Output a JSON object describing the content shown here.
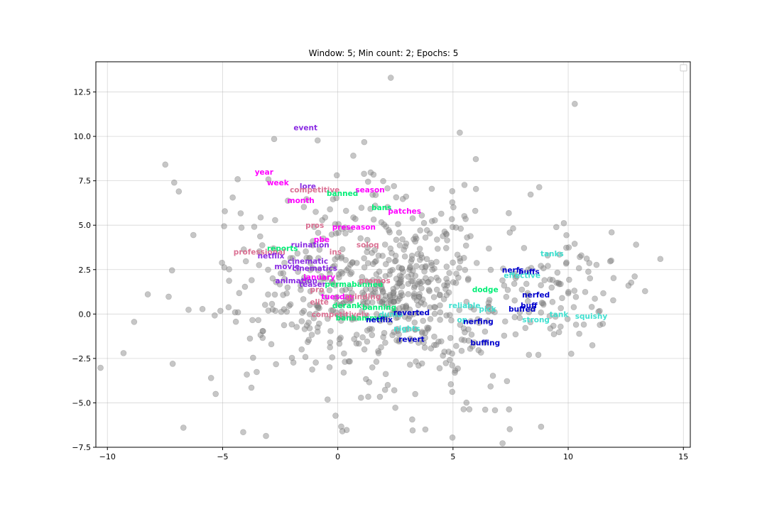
{
  "chart_data": {
    "type": "scatter",
    "title": "Window: 5;  Min count: 2;  Epochs: 5",
    "xlabel": "",
    "ylabel": "",
    "xlim": [
      -10.5,
      15.3
    ],
    "ylim": [
      -7.5,
      14.2
    ],
    "xticks": [
      -10,
      -5,
      0,
      5,
      10,
      15
    ],
    "xtick_labels": [
      "−10",
      "−5",
      "0",
      "5",
      "10",
      "15"
    ],
    "yticks": [
      -7.5,
      -5.0,
      -2.5,
      0.0,
      2.5,
      5.0,
      7.5,
      10.0,
      12.5
    ],
    "ytick_labels": [
      "−7.5",
      "−5.0",
      "−2.5",
      "0.0",
      "2.5",
      "5.0",
      "7.5",
      "10.0",
      "12.5"
    ],
    "grid": true,
    "legend": "top-right (empty)",
    "point_color": "#808080",
    "points_note": "gray background word vectors (approximate sample)",
    "background_points": [],
    "labels": [
      {
        "text": "event",
        "x": -1.4,
        "y": 10.5,
        "color": "#8a2be2"
      },
      {
        "text": "year",
        "x": -3.2,
        "y": 8.0,
        "color": "#ff00ff"
      },
      {
        "text": "week",
        "x": -2.6,
        "y": 7.4,
        "color": "#ff00ff"
      },
      {
        "text": "lore",
        "x": -1.3,
        "y": 7.2,
        "color": "#8a2be2"
      },
      {
        "text": "competitive",
        "x": -1.0,
        "y": 7.0,
        "color": "#db7093"
      },
      {
        "text": "banned",
        "x": 0.2,
        "y": 6.8,
        "color": "#00ee76"
      },
      {
        "text": "season",
        "x": 1.4,
        "y": 7.0,
        "color": "#ff00ff"
      },
      {
        "text": "month",
        "x": -1.6,
        "y": 6.4,
        "color": "#ff00ff"
      },
      {
        "text": "bans",
        "x": 1.9,
        "y": 6.0,
        "color": "#00ee76"
      },
      {
        "text": "patches",
        "x": 2.9,
        "y": 5.8,
        "color": "#ff00ff"
      },
      {
        "text": "pros",
        "x": -1.0,
        "y": 5.0,
        "color": "#db7093"
      },
      {
        "text": "preseason",
        "x": 0.7,
        "y": 4.9,
        "color": "#ff00ff"
      },
      {
        "text": "pbe",
        "x": -0.7,
        "y": 4.2,
        "color": "#ff00ff"
      },
      {
        "text": "ruination",
        "x": -1.2,
        "y": 3.9,
        "color": "#8a2be2"
      },
      {
        "text": "soloq",
        "x": 1.3,
        "y": 3.9,
        "color": "#db7093"
      },
      {
        "text": "reports",
        "x": -2.4,
        "y": 3.7,
        "color": "#00ee76"
      },
      {
        "text": "professional",
        "x": -3.4,
        "y": 3.5,
        "color": "#db7093"
      },
      {
        "text": "netflix",
        "x": -2.9,
        "y": 3.3,
        "color": "#8a2be2"
      },
      {
        "text": "ins",
        "x": -0.1,
        "y": 3.5,
        "color": "#db7093"
      },
      {
        "text": "cinematic",
        "x": -1.3,
        "y": 3.0,
        "color": "#8a2be2"
      },
      {
        "text": "movie",
        "x": -2.2,
        "y": 2.7,
        "color": "#8a2be2"
      },
      {
        "text": "cinematics",
        "x": -1.0,
        "y": 2.6,
        "color": "#8a2be2"
      },
      {
        "text": "january",
        "x": -0.8,
        "y": 2.1,
        "color": "#ff00ff"
      },
      {
        "text": "animation",
        "x": -1.8,
        "y": 1.9,
        "color": "#8a2be2"
      },
      {
        "text": "teaser",
        "x": -1.1,
        "y": 1.7,
        "color": "#8a2be2"
      },
      {
        "text": "permabanned",
        "x": 0.7,
        "y": 1.7,
        "color": "#00ee76"
      },
      {
        "text": "promos",
        "x": 1.6,
        "y": 1.9,
        "color": "#db7093"
      },
      {
        "text": "pro",
        "x": -0.9,
        "y": 1.4,
        "color": "#db7093"
      },
      {
        "text": "tuesday",
        "x": 0.0,
        "y": 1.0,
        "color": "#ff00ff"
      },
      {
        "text": "grinding",
        "x": 1.1,
        "y": 1.0,
        "color": "#db7093"
      },
      {
        "text": "elite",
        "x": -0.8,
        "y": 0.7,
        "color": "#db7093"
      },
      {
        "text": "derank",
        "x": 0.4,
        "y": 0.5,
        "color": "#00ee76"
      },
      {
        "text": "banning",
        "x": 1.8,
        "y": 0.4,
        "color": "#00ee76"
      },
      {
        "text": "competitively",
        "x": 0.1,
        "y": 0.0,
        "color": "#db7093"
      },
      {
        "text": "dumb",
        "x": 2.3,
        "y": 0.0,
        "color": "#40e0d0"
      },
      {
        "text": "reverted",
        "x": 3.2,
        "y": 0.1,
        "color": "#0000cd"
      },
      {
        "text": "banhammer",
        "x": 1.0,
        "y": -0.2,
        "color": "#00ee76"
      },
      {
        "text": "netflix",
        "x": 1.8,
        "y": -0.3,
        "color": "#0000cd"
      },
      {
        "text": "nights",
        "x": 3.0,
        "y": -0.8,
        "color": "#40e0d0"
      },
      {
        "text": "revert",
        "x": 3.2,
        "y": -1.4,
        "color": "#0000cd"
      },
      {
        "text": "reliable",
        "x": 5.5,
        "y": 0.5,
        "color": "#40e0d0"
      },
      {
        "text": "pick",
        "x": 6.5,
        "y": 0.3,
        "color": "#40e0d0"
      },
      {
        "text": "op",
        "x": 5.4,
        "y": -0.3,
        "color": "#40e0d0"
      },
      {
        "text": "nerfing",
        "x": 6.1,
        "y": -0.4,
        "color": "#0000cd"
      },
      {
        "text": "buffing",
        "x": 6.4,
        "y": -1.6,
        "color": "#0000cd"
      },
      {
        "text": "dodge",
        "x": 6.4,
        "y": 1.4,
        "color": "#00ee76"
      },
      {
        "text": "nerfs",
        "x": 7.6,
        "y": 2.5,
        "color": "#0000cd"
      },
      {
        "text": "buffs",
        "x": 8.3,
        "y": 2.4,
        "color": "#0000cd"
      },
      {
        "text": "effective",
        "x": 8.0,
        "y": 2.2,
        "color": "#40e0d0"
      },
      {
        "text": "tanks",
        "x": 9.3,
        "y": 3.4,
        "color": "#40e0d0"
      },
      {
        "text": "nerfed",
        "x": 8.6,
        "y": 1.1,
        "color": "#0000cd"
      },
      {
        "text": "buff",
        "x": 8.3,
        "y": 0.5,
        "color": "#0000cd"
      },
      {
        "text": "buffed",
        "x": 8.0,
        "y": 0.3,
        "color": "#0000cd"
      },
      {
        "text": "strong",
        "x": 8.6,
        "y": -0.3,
        "color": "#40e0d0"
      },
      {
        "text": "tank",
        "x": 9.6,
        "y": 0.0,
        "color": "#40e0d0"
      },
      {
        "text": "squishy",
        "x": 11.0,
        "y": -0.1,
        "color": "#40e0d0"
      }
    ]
  }
}
